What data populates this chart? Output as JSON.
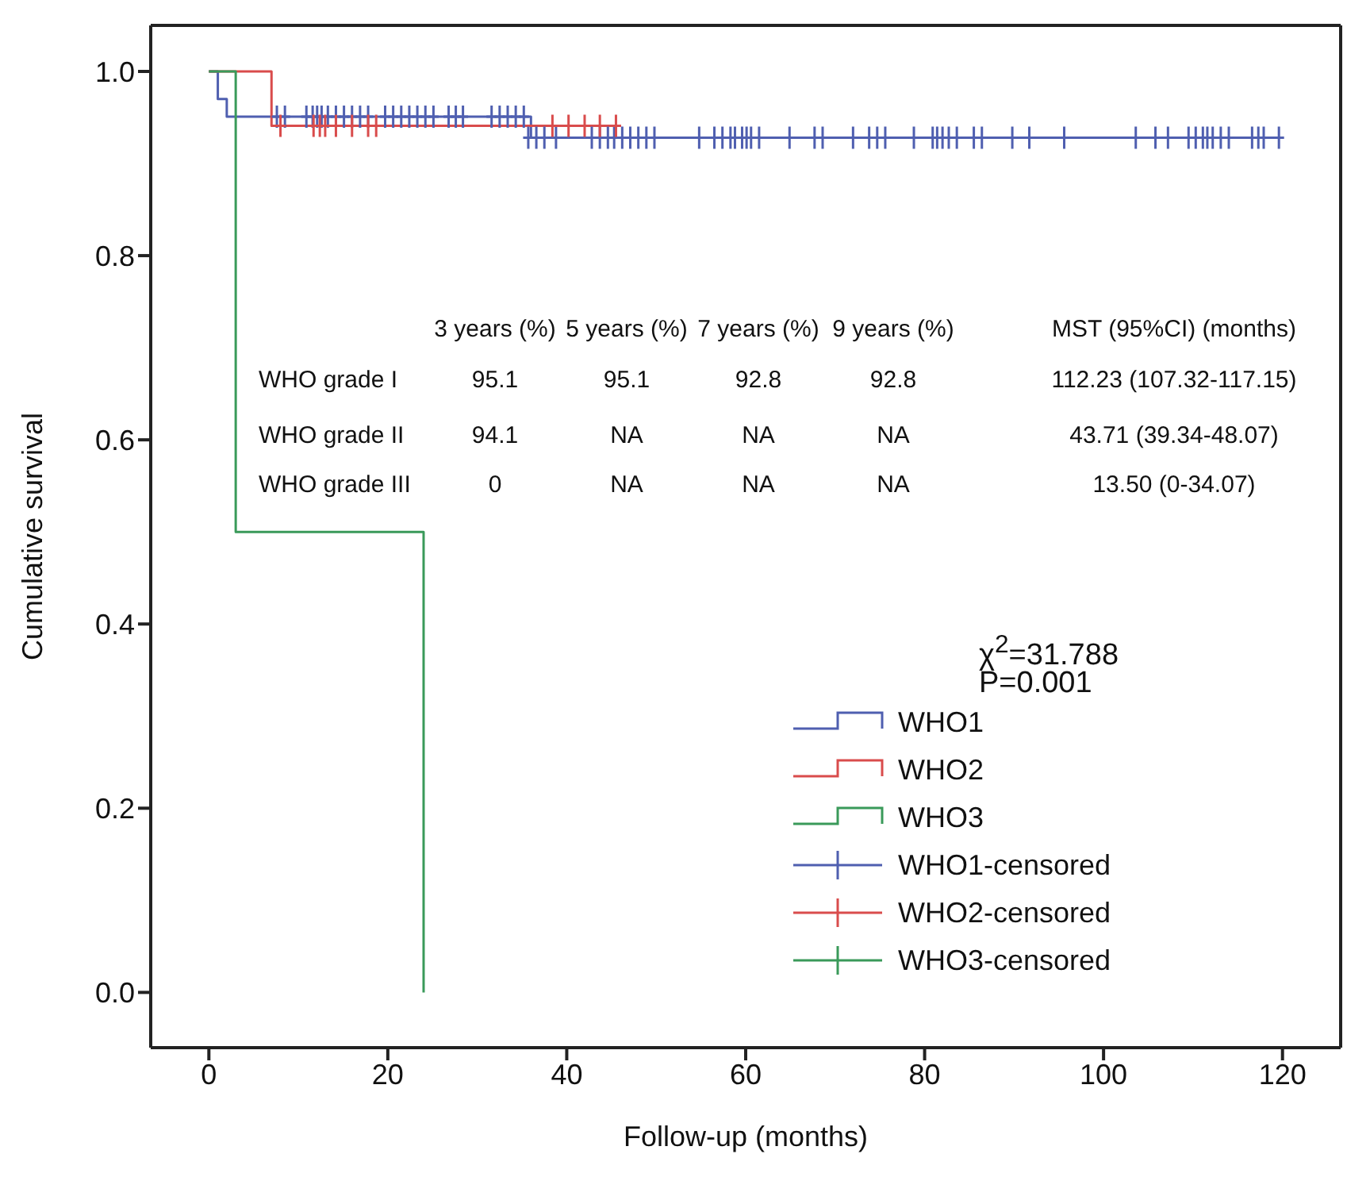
{
  "chart_data": {
    "type": "step",
    "xlabel": "Follow-up (months)",
    "ylabel": "Cumulative survival",
    "xlim": [
      -6.5,
      126.5
    ],
    "ylim": [
      -0.06,
      1.05
    ],
    "xticks": [
      0,
      20,
      40,
      60,
      80,
      100,
      120
    ],
    "yticks": [
      {
        "value": 0,
        "label": "0.0"
      },
      {
        "value": 0.2,
        "label": "0.2"
      },
      {
        "value": 0.4,
        "label": "0.4"
      },
      {
        "value": 0.6,
        "label": "0.6"
      },
      {
        "value": 0.8,
        "label": "0.8"
      },
      {
        "value": 1,
        "label": "1.0"
      }
    ],
    "grid": false,
    "legend": "bottom right",
    "line_style": "solid",
    "series": [
      {
        "name": "WHO1",
        "color": "#4f5fb0",
        "x": [
          0,
          1,
          2,
          36,
          120
        ],
        "values": [
          1,
          0.97,
          0.951,
          0.928,
          0.928
        ]
      },
      {
        "name": "WHO2",
        "color": "#d94c4c",
        "x": [
          0,
          7,
          46
        ],
        "values": [
          1,
          0.941,
          0.941
        ]
      },
      {
        "name": "WHO3",
        "color": "#3a9a5a",
        "x": [
          0,
          3,
          24
        ],
        "values": [
          1,
          0.5,
          0
        ]
      },
      {
        "name": "WHO1-censored",
        "type": "scatter",
        "marker": "cross",
        "color": "#4f5fb0",
        "x": [
          7.6,
          8.5,
          10.9,
          11.6,
          12.1,
          12.6,
          13.3,
          14.2,
          15.1,
          16.0,
          16.9,
          17.8,
          19.7,
          20.6,
          21.5,
          22.4,
          23.3,
          24.2,
          25.1,
          26.8,
          27.6,
          28.4,
          31.6,
          32.5,
          33.4,
          34.3,
          35.2,
          35.7,
          36.6,
          37.5,
          38.8,
          42.8,
          43.7,
          44.6,
          45.3,
          46.2,
          47.1,
          48.0,
          48.9,
          49.8,
          54.8,
          56.5,
          57.4,
          58.3,
          58.8,
          59.6,
          60.1,
          60.6,
          61.5,
          64.9,
          67.7,
          68.6,
          72.0,
          73.8,
          74.7,
          75.6,
          78.8,
          80.9,
          81.4,
          82.0,
          82.7,
          83.6,
          85.5,
          86.4,
          89.8,
          91.7,
          95.6,
          103.6,
          105.8,
          107.2,
          109.5,
          110.3,
          111.1,
          111.6,
          112.2,
          113.1,
          114.0,
          116.6,
          117.3,
          117.9,
          119.6
        ],
        "values": [
          0.951,
          0.951,
          0.951,
          0.951,
          0.951,
          0.951,
          0.951,
          0.951,
          0.951,
          0.951,
          0.951,
          0.951,
          0.951,
          0.951,
          0.951,
          0.951,
          0.951,
          0.951,
          0.951,
          0.951,
          0.951,
          0.951,
          0.951,
          0.951,
          0.951,
          0.951,
          0.951,
          0.928,
          0.928,
          0.928,
          0.928,
          0.928,
          0.928,
          0.928,
          0.928,
          0.928,
          0.928,
          0.928,
          0.928,
          0.928,
          0.928,
          0.928,
          0.928,
          0.928,
          0.928,
          0.928,
          0.928,
          0.928,
          0.928,
          0.928,
          0.928,
          0.928,
          0.928,
          0.928,
          0.928,
          0.928,
          0.928,
          0.928,
          0.928,
          0.928,
          0.928,
          0.928,
          0.928,
          0.928,
          0.928,
          0.928,
          0.928,
          0.928,
          0.928,
          0.928,
          0.928,
          0.928,
          0.928,
          0.928,
          0.928,
          0.928,
          0.928,
          0.928,
          0.928,
          0.928,
          0.928
        ]
      },
      {
        "name": "WHO2-censored",
        "type": "scatter",
        "marker": "cross",
        "color": "#d94c4c",
        "x": [
          8.0,
          11.7,
          12.4,
          13.0,
          14.2,
          16.0,
          17.8,
          18.7,
          38.4,
          40.2,
          42.0,
          43.7,
          45.5
        ],
        "values": [
          0.941,
          0.941,
          0.941,
          0.941,
          0.941,
          0.941,
          0.941,
          0.941,
          0.941,
          0.941,
          0.941,
          0.941,
          0.941
        ]
      },
      {
        "name": "WHO3-censored",
        "type": "scatter",
        "marker": "cross",
        "color": "#3a9a5a"
      }
    ],
    "annotations": [
      "3 years (%)",
      "5 years (%)",
      "7 years (%)",
      "9 years (%)",
      "MST (95%CI) (months)",
      "WHO grade I",
      "95.1",
      "95.1",
      "92.8",
      "92.8",
      "112.23 (107.32-117.15)",
      "WHO grade II",
      "94.1",
      "NA",
      "NA",
      "NA",
      "43.71 (39.34-48.07)",
      "WHO grade III",
      "0",
      "NA",
      "NA",
      "NA",
      "13.50 (0-34.07)",
      "χ$^{2}$=31.788",
      "P=0.001"
    ]
  }
}
